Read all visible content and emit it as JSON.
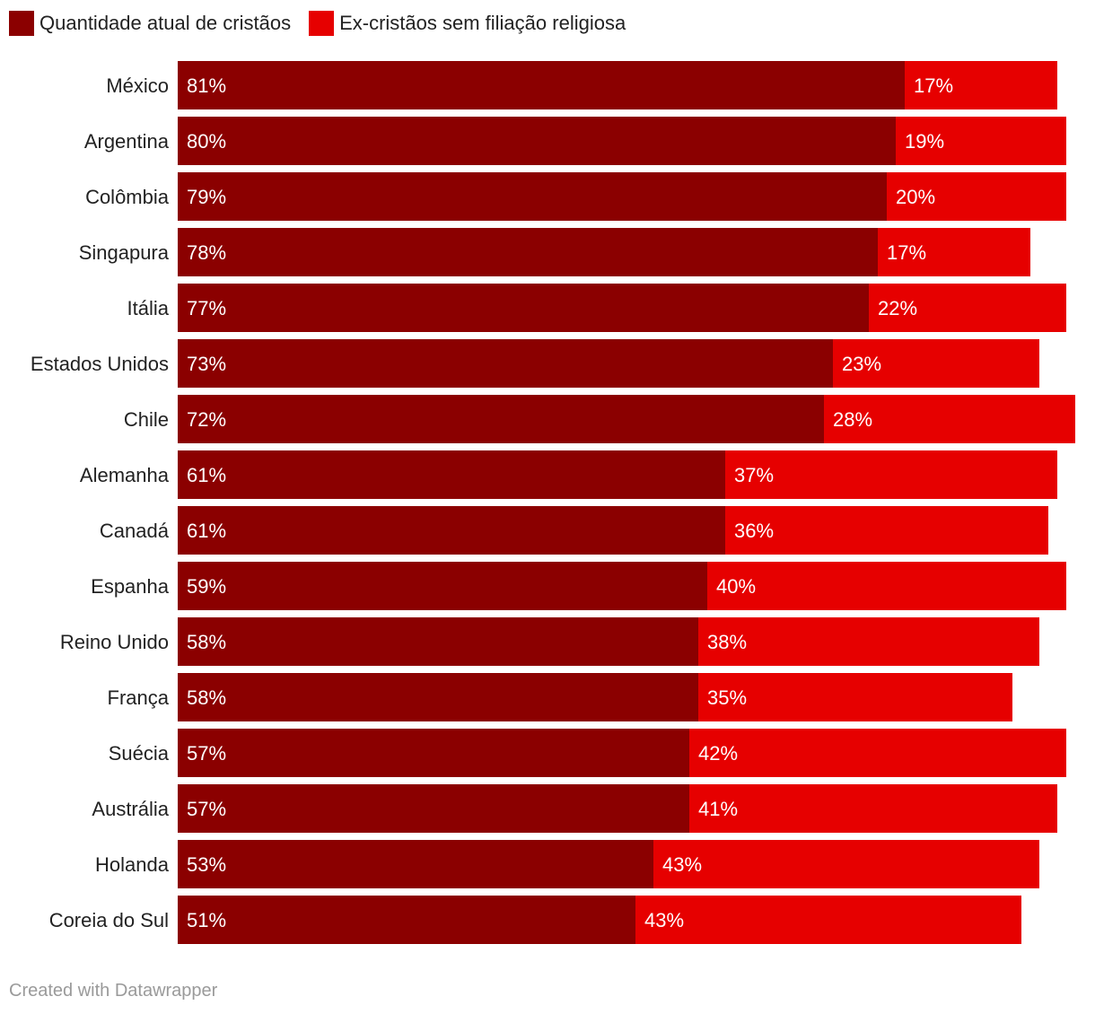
{
  "chart_data": {
    "type": "bar",
    "orientation": "horizontal",
    "stacked": true,
    "categories": [
      "México",
      "Argentina",
      "Colômbia",
      "Singapura",
      "Itália",
      "Estados Unidos",
      "Chile",
      "Alemanha",
      "Canadá",
      "Espanha",
      "Reino Unido",
      "França",
      "Suécia",
      "Austrália",
      "Holanda",
      "Coreia do Sul"
    ],
    "series": [
      {
        "name": "Quantidade atual de cristãos",
        "color": "#8b0000",
        "values": [
          81,
          80,
          79,
          78,
          77,
          73,
          72,
          61,
          61,
          59,
          58,
          58,
          57,
          57,
          53,
          51
        ],
        "labels": [
          "81%",
          "80%",
          "79%",
          "78%",
          "77%",
          "73%",
          "72%",
          "61%",
          "61%",
          "59%",
          "58%",
          "58%",
          "57%",
          "57%",
          "53%",
          "51%"
        ]
      },
      {
        "name": "Ex-cristãos sem filiação religiosa",
        "color": "#e60000",
        "values": [
          17,
          19,
          20,
          17,
          22,
          23,
          28,
          37,
          36,
          40,
          38,
          35,
          42,
          41,
          43,
          43
        ],
        "labels": [
          "17%",
          "19%",
          "20%",
          "17%",
          "22%",
          "23%",
          "28%",
          "37%",
          "36%",
          "40%",
          "38%",
          "35%",
          "42%",
          "41%",
          "43%",
          "43%"
        ]
      }
    ],
    "xlim": [
      0,
      100
    ],
    "grid": false,
    "legend_position": "top-left"
  },
  "footer": {
    "credit": "Created with Datawrapper"
  }
}
